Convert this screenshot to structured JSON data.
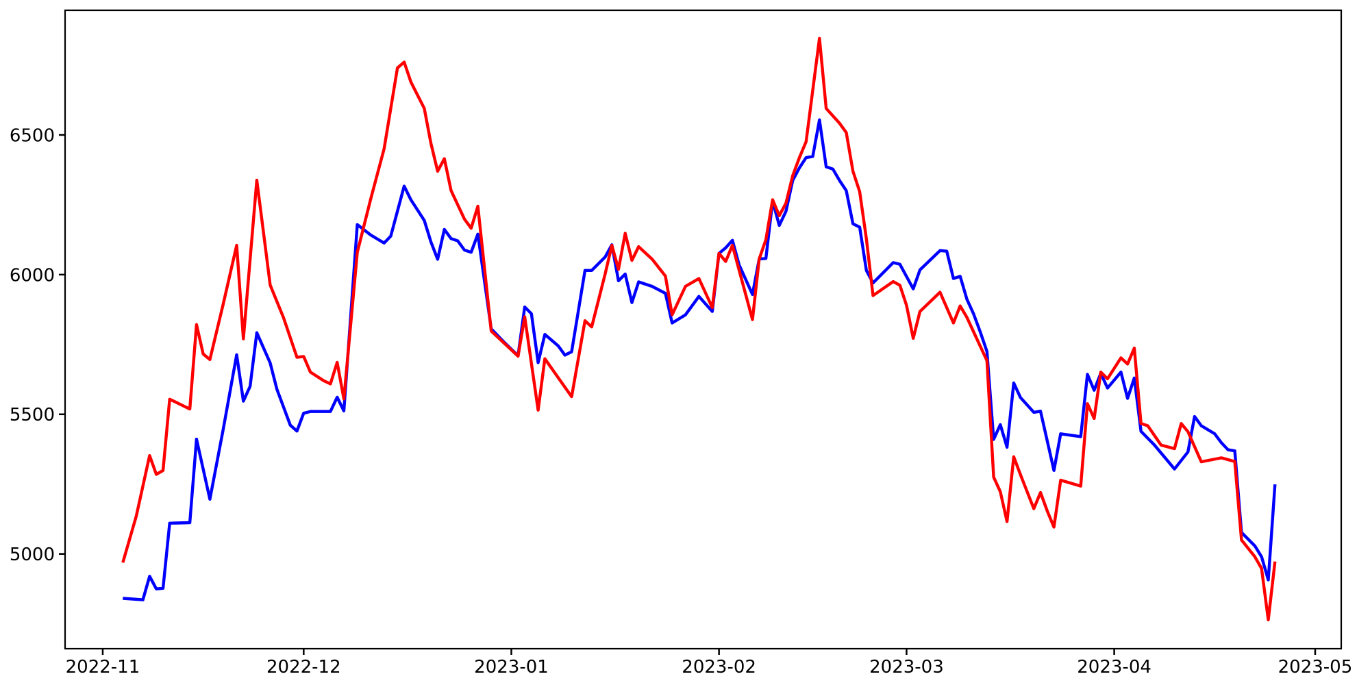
{
  "chart_data": {
    "type": "line",
    "title": "",
    "xlabel": "",
    "ylabel": "",
    "grid": false,
    "legend": null,
    "background_color": "#ffffff",
    "spine_color": "#000000",
    "tick_label_color": "#000000",
    "x_axis": {
      "origin_date": "2022-11-01",
      "domain_days": [
        -5.62,
        184.89
      ],
      "ticks": [
        {
          "label": "2022-11",
          "date": "2022-11-01"
        },
        {
          "label": "2022-12",
          "date": "2022-12-01"
        },
        {
          "label": "2023-01",
          "date": "2023-01-01"
        },
        {
          "label": "2023-02",
          "date": "2023-02-01"
        },
        {
          "label": "2023-03",
          "date": "2023-03-01"
        },
        {
          "label": "2023-04",
          "date": "2023-04-01"
        },
        {
          "label": "2023-05",
          "date": "2023-05-01"
        }
      ]
    },
    "y_axis": {
      "domain": [
        4660.8,
        6946.4
      ],
      "ticks": [
        5000,
        5500,
        6000,
        6500
      ]
    },
    "series": [
      {
        "name": "blue-line",
        "color": "#0000ff",
        "points": [
          [
            "2022-11-04",
            4841
          ],
          [
            "2022-11-07",
            4836
          ],
          [
            "2022-11-08",
            4920
          ],
          [
            "2022-11-09",
            4875
          ],
          [
            "2022-11-10",
            4877
          ],
          [
            "2022-11-11",
            5110
          ],
          [
            "2022-11-14",
            5112
          ],
          [
            "2022-11-15",
            5411
          ],
          [
            "2022-11-17",
            5196
          ],
          [
            "2022-11-19",
            5448
          ],
          [
            "2022-11-21",
            5713
          ],
          [
            "2022-11-22",
            5547
          ],
          [
            "2022-11-23",
            5600
          ],
          [
            "2022-11-24",
            5792
          ],
          [
            "2022-11-26",
            5684
          ],
          [
            "2022-11-27",
            5590
          ],
          [
            "2022-11-29",
            5461
          ],
          [
            "2022-11-30",
            5440
          ],
          [
            "2022-12-01",
            5504
          ],
          [
            "2022-12-02",
            5510
          ],
          [
            "2022-12-05",
            5510
          ],
          [
            "2022-12-06",
            5561
          ],
          [
            "2022-12-07",
            5512
          ],
          [
            "2022-12-09",
            6179
          ],
          [
            "2022-12-11",
            6142
          ],
          [
            "2022-12-13",
            6113
          ],
          [
            "2022-12-14",
            6138
          ],
          [
            "2022-12-16",
            6317
          ],
          [
            "2022-12-17",
            6268
          ],
          [
            "2022-12-19",
            6194
          ],
          [
            "2022-12-20",
            6117
          ],
          [
            "2022-12-21",
            6055
          ],
          [
            "2022-12-22",
            6162
          ],
          [
            "2022-12-23",
            6129
          ],
          [
            "2022-12-24",
            6121
          ],
          [
            "2022-12-25",
            6088
          ],
          [
            "2022-12-26",
            6080
          ],
          [
            "2022-12-27",
            6145
          ],
          [
            "2022-12-29",
            5806
          ],
          [
            "2022-12-31",
            5756
          ],
          [
            "2023-01-02",
            5710
          ],
          [
            "2023-01-03",
            5884
          ],
          [
            "2023-01-04",
            5860
          ],
          [
            "2023-01-05",
            5685
          ],
          [
            "2023-01-06",
            5786
          ],
          [
            "2023-01-08",
            5745
          ],
          [
            "2023-01-09",
            5712
          ],
          [
            "2023-01-10",
            5724
          ],
          [
            "2023-01-12",
            6015
          ],
          [
            "2023-01-13",
            6015
          ],
          [
            "2023-01-15",
            6063
          ],
          [
            "2023-01-16",
            6107
          ],
          [
            "2023-01-17",
            5978
          ],
          [
            "2023-01-18",
            6002
          ],
          [
            "2023-01-19",
            5900
          ],
          [
            "2023-01-20",
            5974
          ],
          [
            "2023-01-22",
            5958
          ],
          [
            "2023-01-24",
            5933
          ],
          [
            "2023-01-25",
            5827
          ],
          [
            "2023-01-27",
            5856
          ],
          [
            "2023-01-29",
            5922
          ],
          [
            "2023-01-31",
            5868
          ],
          [
            "2023-02-01",
            6076
          ],
          [
            "2023-02-02",
            6096
          ],
          [
            "2023-02-03",
            6123
          ],
          [
            "2023-02-04",
            6035
          ],
          [
            "2023-02-06",
            5929
          ],
          [
            "2023-02-07",
            6056
          ],
          [
            "2023-02-08",
            6058
          ],
          [
            "2023-02-09",
            6264
          ],
          [
            "2023-02-10",
            6176
          ],
          [
            "2023-02-11",
            6227
          ],
          [
            "2023-02-12",
            6337
          ],
          [
            "2023-02-13",
            6382
          ],
          [
            "2023-02-14",
            6419
          ],
          [
            "2023-02-15",
            6423
          ],
          [
            "2023-02-16",
            6554
          ],
          [
            "2023-02-17",
            6386
          ],
          [
            "2023-02-18",
            6378
          ],
          [
            "2023-02-19",
            6337
          ],
          [
            "2023-02-20",
            6301
          ],
          [
            "2023-02-21",
            6182
          ],
          [
            "2023-02-22",
            6170
          ],
          [
            "2023-02-23",
            6015
          ],
          [
            "2023-02-24",
            5970
          ],
          [
            "2023-02-27",
            6043
          ],
          [
            "2023-02-28",
            6037
          ],
          [
            "2023-03-02",
            5949
          ],
          [
            "2023-03-03",
            6017
          ],
          [
            "2023-03-06",
            6086
          ],
          [
            "2023-03-07",
            6084
          ],
          [
            "2023-03-08",
            5986
          ],
          [
            "2023-03-09",
            5994
          ],
          [
            "2023-03-10",
            5912
          ],
          [
            "2023-03-11",
            5860
          ],
          [
            "2023-03-12",
            5795
          ],
          [
            "2023-03-13",
            5725
          ],
          [
            "2023-03-14",
            5410
          ],
          [
            "2023-03-15",
            5463
          ],
          [
            "2023-03-16",
            5382
          ],
          [
            "2023-03-17",
            5612
          ],
          [
            "2023-03-18",
            5560
          ],
          [
            "2023-03-20",
            5507
          ],
          [
            "2023-03-21",
            5511
          ],
          [
            "2023-03-23",
            5299
          ],
          [
            "2023-03-24",
            5430
          ],
          [
            "2023-03-27",
            5420
          ],
          [
            "2023-03-28",
            5643
          ],
          [
            "2023-03-29",
            5586
          ],
          [
            "2023-03-30",
            5647
          ],
          [
            "2023-03-31",
            5594
          ],
          [
            "2023-04-02",
            5651
          ],
          [
            "2023-04-03",
            5557
          ],
          [
            "2023-04-04",
            5630
          ],
          [
            "2023-04-05",
            5439
          ],
          [
            "2023-04-07",
            5390
          ],
          [
            "2023-04-10",
            5304
          ],
          [
            "2023-04-12",
            5365
          ],
          [
            "2023-04-13",
            5492
          ],
          [
            "2023-04-14",
            5459
          ],
          [
            "2023-04-16",
            5430
          ],
          [
            "2023-04-17",
            5398
          ],
          [
            "2023-04-18",
            5373
          ],
          [
            "2023-04-19",
            5369
          ],
          [
            "2023-04-20",
            5077
          ],
          [
            "2023-04-22",
            5029
          ],
          [
            "2023-04-23",
            4990
          ],
          [
            "2023-04-24",
            4907
          ],
          [
            "2023-04-25",
            5249
          ]
        ]
      },
      {
        "name": "red-line",
        "color": "#ff0000",
        "points": [
          [
            "2022-11-04",
            4969
          ],
          [
            "2022-11-06",
            5135
          ],
          [
            "2022-11-08",
            5352
          ],
          [
            "2022-11-09",
            5285
          ],
          [
            "2022-11-10",
            5299
          ],
          [
            "2022-11-11",
            5554
          ],
          [
            "2022-11-14",
            5519
          ],
          [
            "2022-11-15",
            5821
          ],
          [
            "2022-11-16",
            5716
          ],
          [
            "2022-11-17",
            5696
          ],
          [
            "2022-11-19",
            5896
          ],
          [
            "2022-11-21",
            6105
          ],
          [
            "2022-11-22",
            5770
          ],
          [
            "2022-11-24",
            6338
          ],
          [
            "2022-11-25",
            6150
          ],
          [
            "2022-11-26",
            5963
          ],
          [
            "2022-11-28",
            5845
          ],
          [
            "2022-11-30",
            5704
          ],
          [
            "2022-12-01",
            5707
          ],
          [
            "2022-12-02",
            5651
          ],
          [
            "2022-12-04",
            5620
          ],
          [
            "2022-12-05",
            5609
          ],
          [
            "2022-12-06",
            5686
          ],
          [
            "2022-12-07",
            5555
          ],
          [
            "2022-12-09",
            6080
          ],
          [
            "2022-12-11",
            6270
          ],
          [
            "2022-12-13",
            6450
          ],
          [
            "2022-12-15",
            6740
          ],
          [
            "2022-12-16",
            6761
          ],
          [
            "2022-12-17",
            6690
          ],
          [
            "2022-12-19",
            6595
          ],
          [
            "2022-12-20",
            6470
          ],
          [
            "2022-12-21",
            6370
          ],
          [
            "2022-12-22",
            6415
          ],
          [
            "2022-12-23",
            6301
          ],
          [
            "2022-12-25",
            6199
          ],
          [
            "2022-12-26",
            6166
          ],
          [
            "2022-12-27",
            6245
          ],
          [
            "2022-12-29",
            5798
          ],
          [
            "2022-12-31",
            5753
          ],
          [
            "2023-01-02",
            5708
          ],
          [
            "2023-01-03",
            5849
          ],
          [
            "2023-01-05",
            5515
          ],
          [
            "2023-01-06",
            5699
          ],
          [
            "2023-01-08",
            5631
          ],
          [
            "2023-01-10",
            5563
          ],
          [
            "2023-01-12",
            5835
          ],
          [
            "2023-01-13",
            5813
          ],
          [
            "2023-01-15",
            6002
          ],
          [
            "2023-01-16",
            6105
          ],
          [
            "2023-01-17",
            6019
          ],
          [
            "2023-01-18",
            6148
          ],
          [
            "2023-01-19",
            6051
          ],
          [
            "2023-01-20",
            6100
          ],
          [
            "2023-01-22",
            6056
          ],
          [
            "2023-01-24",
            5995
          ],
          [
            "2023-01-25",
            5856
          ],
          [
            "2023-01-27",
            5958
          ],
          [
            "2023-01-29",
            5986
          ],
          [
            "2023-01-31",
            5882
          ],
          [
            "2023-02-01",
            6076
          ],
          [
            "2023-02-02",
            6047
          ],
          [
            "2023-02-03",
            6105
          ],
          [
            "2023-02-06",
            5839
          ],
          [
            "2023-02-07",
            6056
          ],
          [
            "2023-02-08",
            6125
          ],
          [
            "2023-02-09",
            6268
          ],
          [
            "2023-02-10",
            6211
          ],
          [
            "2023-02-11",
            6256
          ],
          [
            "2023-02-12",
            6354
          ],
          [
            "2023-02-13",
            6419
          ],
          [
            "2023-02-14",
            6476
          ],
          [
            "2023-02-16",
            6846
          ],
          [
            "2023-02-17",
            6595
          ],
          [
            "2023-02-19",
            6542
          ],
          [
            "2023-02-20",
            6509
          ],
          [
            "2023-02-21",
            6370
          ],
          [
            "2023-02-22",
            6297
          ],
          [
            "2023-02-23",
            6128
          ],
          [
            "2023-02-24",
            5925
          ],
          [
            "2023-02-27",
            5975
          ],
          [
            "2023-02-28",
            5962
          ],
          [
            "2023-03-01",
            5890
          ],
          [
            "2023-03-02",
            5772
          ],
          [
            "2023-03-03",
            5868
          ],
          [
            "2023-03-06",
            5937
          ],
          [
            "2023-03-08",
            5827
          ],
          [
            "2023-03-09",
            5888
          ],
          [
            "2023-03-10",
            5847
          ],
          [
            "2023-03-13",
            5692
          ],
          [
            "2023-03-14",
            5275
          ],
          [
            "2023-03-15",
            5223
          ],
          [
            "2023-03-16",
            5116
          ],
          [
            "2023-03-17",
            5348
          ],
          [
            "2023-03-18",
            5284
          ],
          [
            "2023-03-20",
            5162
          ],
          [
            "2023-03-21",
            5220
          ],
          [
            "2023-03-22",
            5154
          ],
          [
            "2023-03-23",
            5096
          ],
          [
            "2023-03-24",
            5264
          ],
          [
            "2023-03-27",
            5243
          ],
          [
            "2023-03-28",
            5538
          ],
          [
            "2023-03-29",
            5485
          ],
          [
            "2023-03-30",
            5651
          ],
          [
            "2023-03-31",
            5627
          ],
          [
            "2023-04-02",
            5702
          ],
          [
            "2023-04-03",
            5680
          ],
          [
            "2023-04-04",
            5737
          ],
          [
            "2023-04-05",
            5467
          ],
          [
            "2023-04-06",
            5459
          ],
          [
            "2023-04-08",
            5390
          ],
          [
            "2023-04-10",
            5377
          ],
          [
            "2023-04-11",
            5467
          ],
          [
            "2023-04-12",
            5438
          ],
          [
            "2023-04-14",
            5330
          ],
          [
            "2023-04-17",
            5344
          ],
          [
            "2023-04-19",
            5331
          ],
          [
            "2023-04-20",
            5050
          ],
          [
            "2023-04-22",
            4990
          ],
          [
            "2023-04-23",
            4948
          ],
          [
            "2023-04-24",
            4764
          ],
          [
            "2023-04-25",
            4973
          ]
        ]
      }
    ]
  }
}
